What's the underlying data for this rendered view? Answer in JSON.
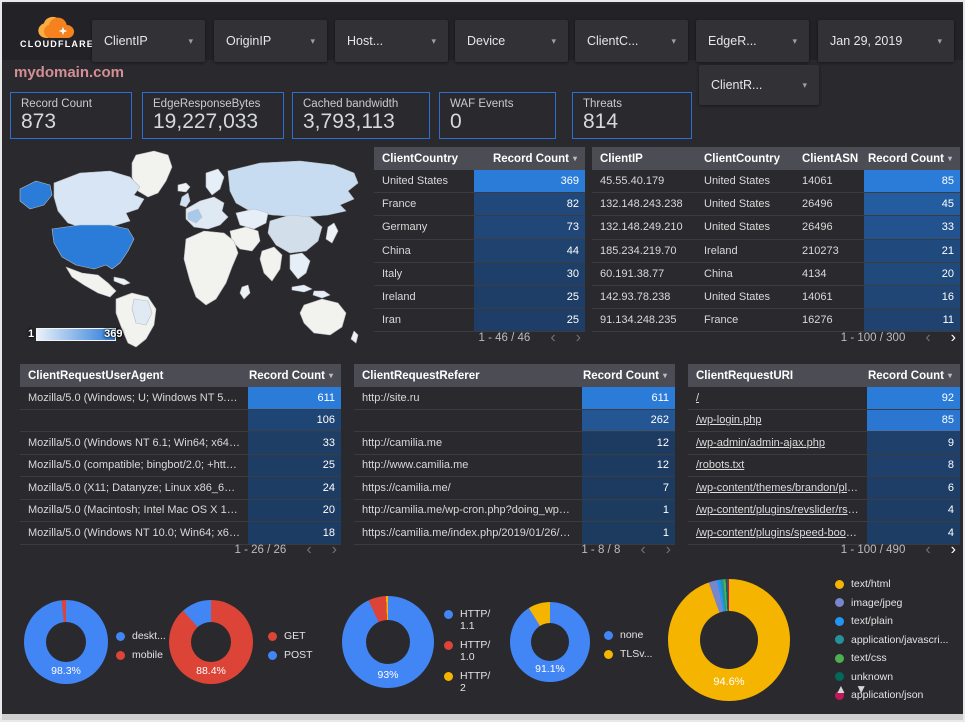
{
  "header": {
    "brand": "CLOUDFLARE",
    "filters": [
      {
        "label": "ClientIP"
      },
      {
        "label": "OriginIP"
      },
      {
        "label": "Host..."
      },
      {
        "label": "Device"
      },
      {
        "label": "ClientC..."
      },
      {
        "label": "EdgeR..."
      }
    ],
    "date_filter": {
      "label": "Jan 29, 2019"
    },
    "extra_filter": {
      "label": "ClientR..."
    }
  },
  "page_title": "mydomain.com",
  "scorecards": [
    {
      "label": "Record Count",
      "value": "873"
    },
    {
      "label": "EdgeResponseBytes",
      "value": "19,227,033"
    },
    {
      "label": "Cached bandwidth",
      "value": "3,793,113"
    },
    {
      "label": "WAF Events",
      "value": "0"
    },
    {
      "label": "Threats",
      "value": "814"
    }
  ],
  "map": {
    "legend_min": "1",
    "legend_max": "369"
  },
  "colors": {
    "accent": "#2b7bd9",
    "heat_low": "#1d3a5f",
    "heat_high": "#2b7bd9",
    "header_bg": "#4c4c54",
    "canvas": "#2a2a2e",
    "title_pink": "#d48f94",
    "card_border": "#2d6fd0"
  },
  "tables": {
    "client_country": {
      "columns": [
        "ClientCountry",
        "Record Count"
      ],
      "max": 369,
      "rows": [
        [
          "United States",
          369
        ],
        [
          "France",
          82
        ],
        [
          "Germany",
          73
        ],
        [
          "China",
          44
        ],
        [
          "Italy",
          30
        ],
        [
          "Ireland",
          25
        ],
        [
          "Iran",
          25
        ]
      ],
      "pagination": {
        "text": "1 - 46 / 46",
        "prev_enabled": false,
        "next_enabled": false
      }
    },
    "client_ip": {
      "columns": [
        "ClientIP",
        "ClientCountry",
        "ClientASN",
        "Record Count"
      ],
      "max": 85,
      "rows": [
        [
          "45.55.40.179",
          "United States",
          "14061",
          85
        ],
        [
          "132.148.243.238",
          "United States",
          "26496",
          45
        ],
        [
          "132.148.249.210",
          "United States",
          "26496",
          33
        ],
        [
          "185.234.219.70",
          "Ireland",
          "210273",
          21
        ],
        [
          "60.191.38.77",
          "China",
          "4134",
          20
        ],
        [
          "142.93.78.238",
          "United States",
          "14061",
          16
        ],
        [
          "91.134.248.235",
          "France",
          "16276",
          11
        ]
      ],
      "pagination": {
        "text": "1 - 100 / 300",
        "prev_enabled": false,
        "next_enabled": true
      }
    },
    "user_agent": {
      "columns": [
        "ClientRequestUserAgent",
        "Record Count"
      ],
      "max": 611,
      "rows": [
        [
          "Mozilla/5.0 (Windows; U; Windows NT 5.1; en-U...",
          611
        ],
        [
          "",
          106
        ],
        [
          "Mozilla/5.0 (Windows NT 6.1; Win64; x64; rv:64...",
          33
        ],
        [
          "Mozilla/5.0 (compatible; bingbot/2.0; +http://w...",
          25
        ],
        [
          "Mozilla/5.0 (X11; Datanyze; Linux x86_64) Appl...",
          24
        ],
        [
          "Mozilla/5.0 (Macintosh; Intel Mac OS X 10.11; r...",
          20
        ],
        [
          "Mozilla/5.0 (Windows NT 10.0; Win64; x64) App...",
          18
        ]
      ],
      "pagination": {
        "text": "1 - 26 / 26",
        "prev_enabled": false,
        "next_enabled": false
      }
    },
    "referer": {
      "columns": [
        "ClientRequestReferer",
        "Record Count"
      ],
      "max": 611,
      "rows": [
        [
          "http://site.ru",
          611
        ],
        [
          "",
          262
        ],
        [
          "http://camilia.me",
          12
        ],
        [
          "http://www.camilia.me",
          12
        ],
        [
          "https://camilia.me/",
          7
        ],
        [
          "http://camilia.me/wp-cron.php?doing_wp_cron...",
          1
        ],
        [
          "https://camilia.me/index.php/2019/01/26/stor...",
          1
        ]
      ],
      "pagination": {
        "text": "1 - 8 / 8",
        "prev_enabled": false,
        "next_enabled": false
      }
    },
    "uri": {
      "columns": [
        "ClientRequestURI",
        "Record Count"
      ],
      "max": 92,
      "link_rows": true,
      "rows": [
        [
          "/",
          92
        ],
        [
          "/wp-login.php",
          85
        ],
        [
          "/wp-admin/admin-ajax.php",
          9
        ],
        [
          "/robots.txt",
          8
        ],
        [
          "/wp-content/themes/brandon/plu...",
          6
        ],
        [
          "/wp-content/plugins/revslider/rs-p...",
          4
        ],
        [
          "/wp-content/plugins/speed-booste...",
          4
        ]
      ],
      "pagination": {
        "text": "1 - 100 / 490",
        "prev_enabled": false,
        "next_enabled": true
      }
    }
  },
  "donuts": [
    {
      "label": "98.3%",
      "slices": [
        {
          "name": "deskt...",
          "value": 98.3,
          "color": "#4285f4"
        },
        {
          "name": "mobile",
          "value": 1.7,
          "color": "#db4437"
        }
      ]
    },
    {
      "label": "88.4%",
      "slices": [
        {
          "name": "GET",
          "value": 88.4,
          "color": "#db4437"
        },
        {
          "name": "POST",
          "value": 11.6,
          "color": "#4285f4"
        }
      ]
    },
    {
      "label": "93%",
      "slices": [
        {
          "name": "HTTP/1.1",
          "value": 93,
          "color": "#4285f4"
        },
        {
          "name": "HTTP/1.0",
          "value": 6.3,
          "color": "#db4437"
        },
        {
          "name": "HTTP/2",
          "value": 0.7,
          "color": "#f4b400"
        }
      ]
    },
    {
      "label": "91.1%",
      "slices": [
        {
          "name": "none",
          "value": 91.1,
          "color": "#4285f4"
        },
        {
          "name": "TLSv...",
          "value": 8.9,
          "color": "#f4b400"
        }
      ]
    },
    {
      "label": "94.6%",
      "slices": [
        {
          "name": "text/html",
          "value": 94.6,
          "color": "#f4b400"
        },
        {
          "name": "image/jpeg",
          "value": 2.2,
          "color": "#7986cb"
        },
        {
          "name": "text/plain",
          "value": 0.9,
          "color": "#2196f3"
        },
        {
          "name": "application/javascri...",
          "value": 0.8,
          "color": "#26919b"
        },
        {
          "name": "text/css",
          "value": 0.6,
          "color": "#4caf50"
        },
        {
          "name": "unknown",
          "value": 0.5,
          "color": "#00695c"
        },
        {
          "name": "application/json",
          "value": 0.4,
          "color": "#c2185b"
        }
      ]
    }
  ],
  "legend_scroll": {
    "up": "▲",
    "down": "▼"
  }
}
